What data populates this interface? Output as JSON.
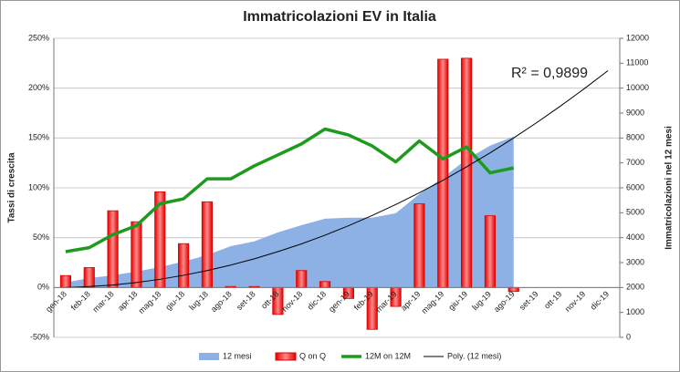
{
  "chart_data": {
    "type": "combo",
    "title": "Immatricolazioni EV in Italia",
    "ylabel": "Tassi di crescita",
    "y2label": "Immatricolazioni nel 12 mesi",
    "annotation": "R² = 0,9899",
    "categories": [
      "gen-18",
      "feb-18",
      "mar-18",
      "apr-18",
      "mag-18",
      "giu-18",
      "lug-18",
      "ago-18",
      "set-18",
      "ott-18",
      "nov-18",
      "dic-18",
      "gen-19",
      "feb-19",
      "mar-19",
      "apr-19",
      "mag-19",
      "giu-19",
      "lug-19",
      "ago-19",
      "set-19",
      "ott-19",
      "nov-19",
      "dic-19"
    ],
    "ylim": [
      -50,
      250
    ],
    "yticks": [
      {
        "value": -50,
        "label": "-50%"
      },
      {
        "value": 0,
        "label": "0%"
      },
      {
        "value": 50,
        "label": "50%"
      },
      {
        "value": 100,
        "label": "100%"
      },
      {
        "value": 150,
        "label": "150%"
      },
      {
        "value": 200,
        "label": "200%"
      },
      {
        "value": 250,
        "label": "250%"
      }
    ],
    "y2lim": [
      0,
      12000
    ],
    "y2ticks": [
      0,
      1000,
      2000,
      3000,
      4000,
      5000,
      6000,
      7000,
      8000,
      9000,
      10000,
      11000,
      12000
    ],
    "grid": true,
    "legend": "bottom",
    "series": [
      {
        "name": "12 mesi",
        "type": "area",
        "axis": "y2",
        "color": "#8db1e4",
        "values": [
          2200,
          2380,
          2490,
          2640,
          2820,
          3040,
          3300,
          3660,
          3850,
          4210,
          4500,
          4760,
          4800,
          4800,
          4980,
          5750,
          6410,
          7140,
          7690,
          8060,
          null,
          null,
          null,
          null
        ]
      },
      {
        "name": "Q on Q",
        "type": "bar",
        "color": "#ff8a8a",
        "edge": "#e00000",
        "values": [
          12,
          20,
          77,
          66,
          96,
          44,
          86,
          1,
          1,
          -27,
          17,
          6,
          -11,
          -42,
          -19,
          84,
          229,
          230,
          72,
          -4,
          null,
          null,
          null,
          null
        ]
      },
      {
        "name": "12M on 12M",
        "type": "line",
        "color": "#1e9b1e",
        "values": [
          36,
          40,
          53,
          62,
          84,
          89,
          109,
          109,
          122,
          133,
          144,
          159,
          153,
          142,
          126,
          147,
          129,
          141,
          115,
          120,
          null,
          null,
          null,
          null
        ]
      },
      {
        "name": "Poly. (12 mesi)",
        "type": "trend",
        "axis": "y2",
        "color": "#000000",
        "values": [
          2000,
          2040,
          2100,
          2200,
          2330,
          2490,
          2680,
          2900,
          3150,
          3440,
          3750,
          4100,
          4480,
          4890,
          5330,
          5800,
          6300,
          6840,
          7400,
          8000,
          8630,
          9290,
          9980,
          10700
        ]
      }
    ]
  }
}
